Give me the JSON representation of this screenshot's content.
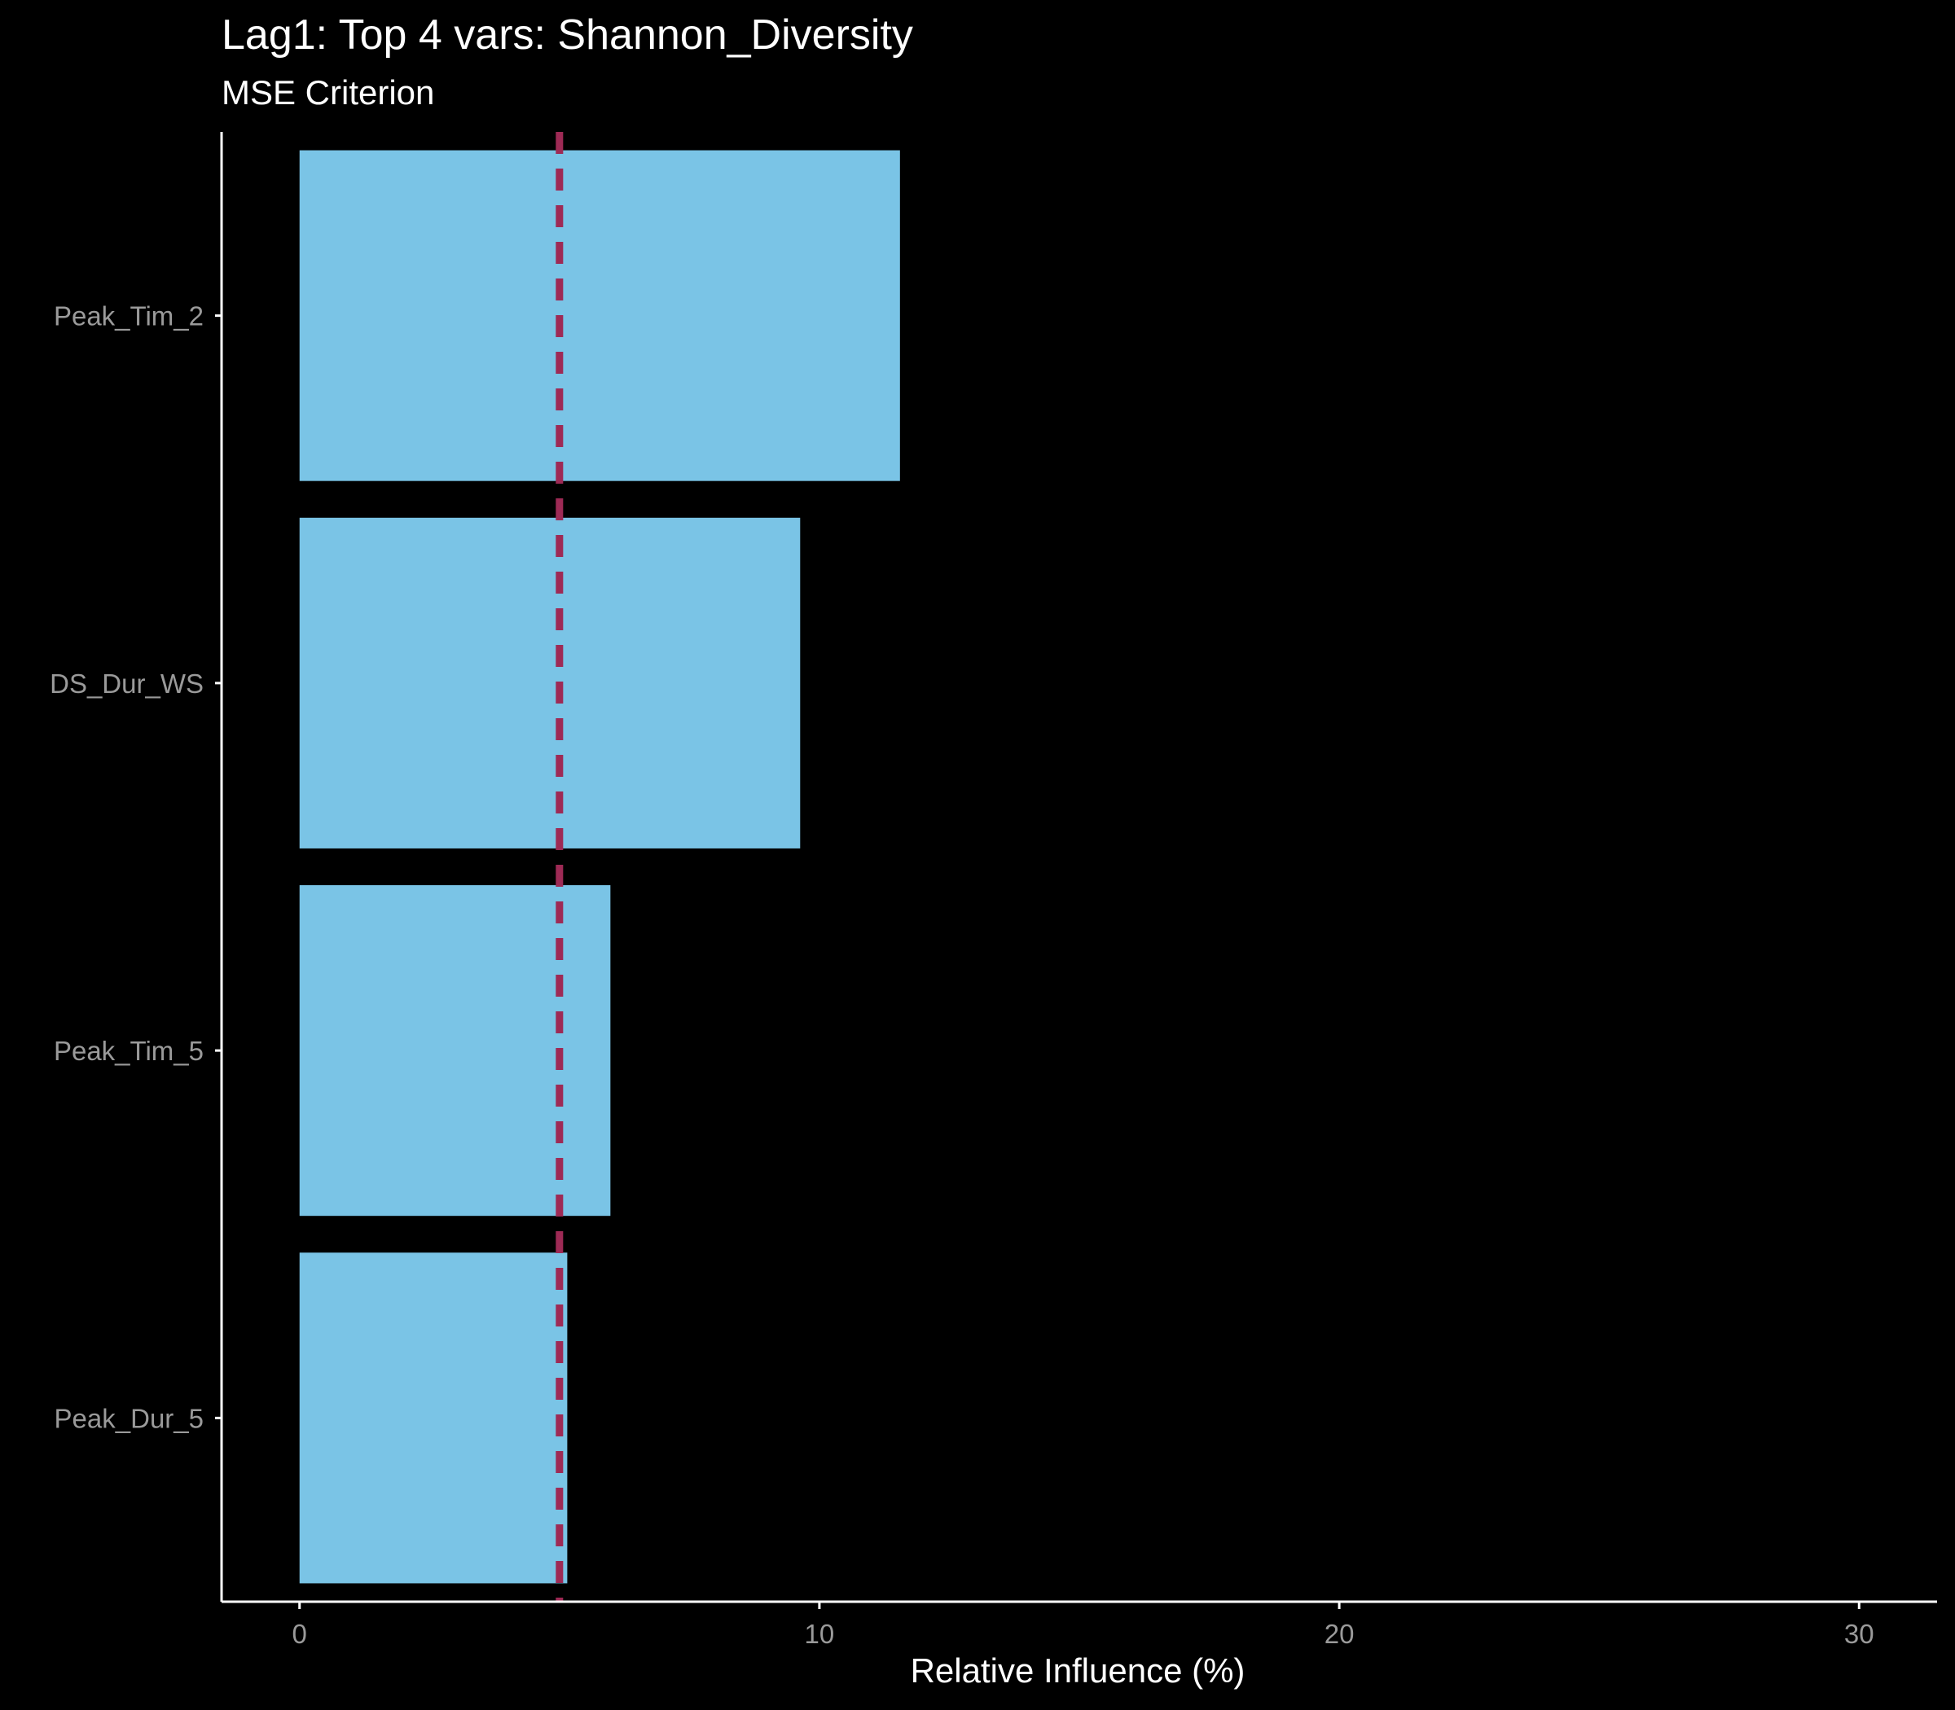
{
  "chart_data": {
    "type": "bar",
    "orientation": "horizontal",
    "title": "Lag1: Top 4 vars: Shannon_Diversity",
    "subtitle": "MSE Criterion",
    "xlabel": "Relative Influence (%)",
    "ylabel": "",
    "categories": [
      "Peak_Tim_2",
      "DS_Dur_WS",
      "Peak_Tim_5",
      "Peak_Dur_5"
    ],
    "values": [
      11.55,
      9.63,
      5.98,
      5.15
    ],
    "xlim": [
      -1.5,
      31.5
    ],
    "xticks": [
      0,
      10,
      20,
      30
    ],
    "reference_line": {
      "value": 5,
      "style": "dashed"
    },
    "grid": false,
    "legend": "none",
    "colors": {
      "background": "#000000",
      "bar": "#7AC4E6",
      "reference_line": "#9E2A55",
      "axis": "#ffffff",
      "tick_label": "#9a9a9a",
      "text": "#ffffff"
    }
  }
}
